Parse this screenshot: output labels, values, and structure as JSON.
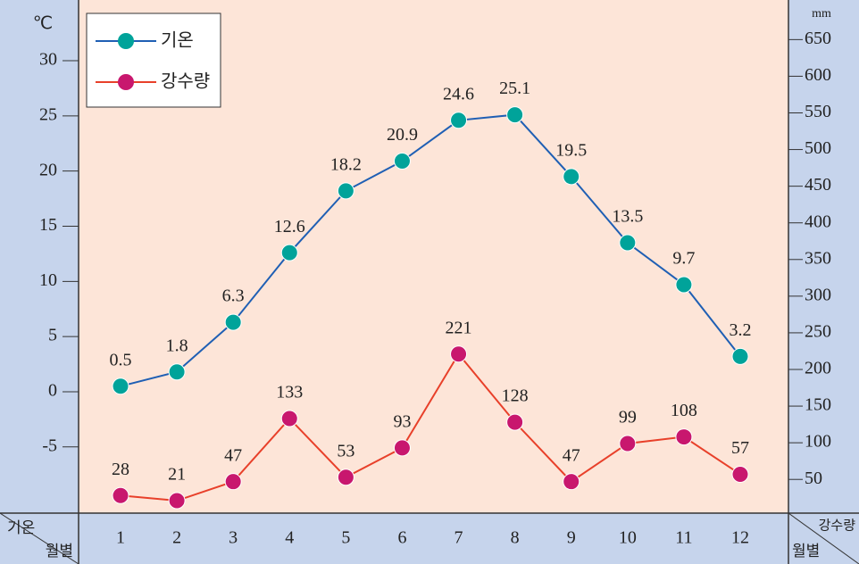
{
  "chart_data": {
    "type": "line",
    "y_unit": "℃",
    "y2_unit": "mm",
    "corner_left": {
      "top": "기온",
      "bottom": "월별"
    },
    "corner_right": {
      "top": "강수량",
      "bottom": "월별"
    },
    "categories": [
      "1",
      "2",
      "3",
      "4",
      "5",
      "6",
      "7",
      "8",
      "9",
      "10",
      "11",
      "12"
    ],
    "series": [
      {
        "name": "기온",
        "color": "#1f5fb4",
        "marker_color": "#00a39a",
        "axis": "y",
        "values": [
          0.5,
          1.8,
          6.3,
          12.6,
          18.2,
          20.9,
          24.6,
          25.1,
          19.5,
          13.5,
          9.7,
          3.2
        ]
      },
      {
        "name": "강수량",
        "color": "#e8402a",
        "marker_color": "#c8176e",
        "axis": "y2",
        "values": [
          28,
          21,
          47,
          133,
          53,
          93,
          221,
          128,
          47,
          99,
          108,
          57
        ]
      }
    ],
    "ylim": [
      -11,
      35.5
    ],
    "yticks": [
      -5,
      0,
      5,
      10,
      15,
      20,
      25,
      30
    ],
    "y2lim": [
      4,
      704
    ],
    "y2ticks": [
      50,
      100,
      150,
      200,
      250,
      300,
      350,
      400,
      450,
      500,
      550,
      600,
      650
    ],
    "legend": "top-left"
  }
}
